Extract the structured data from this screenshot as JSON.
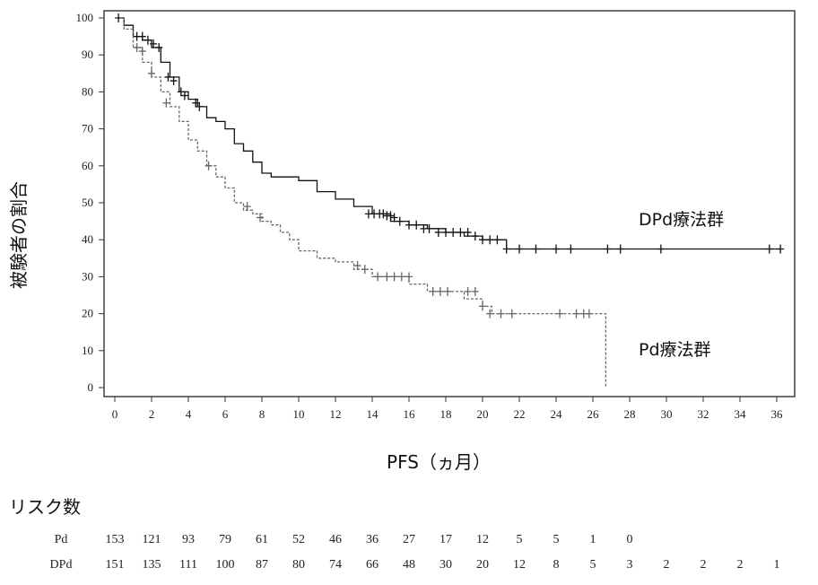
{
  "chart_data": {
    "type": "line",
    "xlabel": "PFS（ヵ月）",
    "ylabel": "被験者の割合",
    "xlim": [
      0,
      37
    ],
    "ylim": [
      0,
      100
    ],
    "x_ticks": [
      0,
      2,
      4,
      6,
      8,
      10,
      12,
      14,
      16,
      18,
      20,
      22,
      24,
      26,
      28,
      30,
      32,
      34,
      36
    ],
    "y_ticks": [
      0,
      10,
      20,
      30,
      40,
      50,
      60,
      70,
      80,
      90,
      100
    ],
    "series": [
      {
        "name": "DPd療法群",
        "color": "#111111",
        "line_style": "solid",
        "x": [
          0,
          0.5,
          1.0,
          1.5,
          2.0,
          2.5,
          3.0,
          3.5,
          4.0,
          4.5,
          5.0,
          5.5,
          6.0,
          6.5,
          7.0,
          7.5,
          8.0,
          8.5,
          9.0,
          10.0,
          11.0,
          12.0,
          13.0,
          14.0,
          15.0,
          16.0,
          17.0,
          18.0,
          19.0,
          20.0,
          21.0,
          21.3,
          36.2
        ],
        "y": [
          100,
          98,
          95,
          94,
          92,
          88,
          84,
          80,
          78,
          76,
          73,
          72,
          70,
          66,
          64,
          61,
          58,
          57,
          57,
          56,
          53,
          51,
          49,
          47,
          45,
          44,
          43,
          42,
          41,
          40,
          40,
          37.5,
          37.5
        ],
        "censor_x": [
          0.2,
          1.2,
          1.5,
          1.8,
          2.1,
          2.4,
          2.9,
          3.2,
          3.6,
          3.8,
          4.4,
          4.6,
          13.8,
          14.1,
          14.4,
          14.6,
          14.8,
          15.0,
          15.2,
          15.5,
          16.0,
          16.4,
          16.8,
          17.1,
          17.6,
          18.0,
          18.4,
          18.8,
          19.2,
          19.6,
          20.0,
          20.4,
          20.8,
          21.3,
          22.0,
          22.9,
          24.0,
          24.8,
          26.8,
          27.5,
          29.7,
          35.6,
          36.2
        ],
        "censor_y": [
          100,
          95,
          95,
          94,
          93,
          92,
          84,
          83,
          80,
          79,
          77,
          76,
          47,
          47,
          47,
          47,
          46.5,
          46.5,
          46,
          45,
          44,
          44,
          43,
          43,
          42,
          42,
          42,
          42,
          42,
          41,
          40,
          40,
          40,
          37.5,
          37.5,
          37.5,
          37.5,
          37.5,
          37.5,
          37.5,
          37.5,
          37.5,
          37.5
        ]
      },
      {
        "name": "Pd療法群",
        "color": "#666666",
        "line_style": "dashed",
        "x": [
          0,
          0.5,
          1.0,
          1.5,
          2.0,
          2.5,
          3.0,
          3.5,
          4.0,
          4.5,
          5.0,
          5.5,
          6.0,
          6.5,
          7.0,
          7.5,
          8.0,
          8.5,
          9.0,
          9.5,
          10.0,
          11.0,
          12.0,
          13.0,
          14.0,
          15.0,
          16.0,
          17.0,
          18.0,
          19.0,
          20.0,
          20.5,
          26.7,
          26.7
        ],
        "y": [
          100,
          97,
          92,
          88,
          84,
          80,
          76,
          72,
          67,
          64,
          60,
          57,
          54,
          50,
          48,
          47,
          45,
          44,
          42,
          40,
          37,
          35,
          34,
          32,
          30,
          30,
          28,
          26,
          26,
          24,
          22,
          20,
          20,
          0
        ],
        "censor_x": [
          1.2,
          1.5,
          2.0,
          2.8,
          5.1,
          7.2,
          7.9,
          13.2,
          13.6,
          14.3,
          14.8,
          15.2,
          15.6,
          16.0,
          17.3,
          17.7,
          18.1,
          19.2,
          19.6,
          20.0,
          20.4,
          21.0,
          21.6,
          24.2,
          25.1,
          25.5,
          25.8
        ],
        "censor_y": [
          92,
          91,
          85,
          77,
          60,
          49,
          46,
          33,
          32,
          30,
          30,
          30,
          30,
          30,
          26,
          26,
          26,
          26,
          26,
          22,
          20,
          20,
          20,
          20,
          20,
          20,
          20
        ]
      }
    ]
  },
  "risk_table": {
    "title": "リスク数",
    "rows": [
      {
        "label": "Pd",
        "values": [
          "153",
          "121",
          "93",
          "79",
          "61",
          "52",
          "46",
          "36",
          "27",
          "17",
          "12",
          "5",
          "5",
          "1",
          "0"
        ]
      },
      {
        "label": "DPd",
        "values": [
          "151",
          "135",
          "111",
          "100",
          "87",
          "80",
          "74",
          "66",
          "48",
          "30",
          "20",
          "12",
          "8",
          "5",
          "3",
          "2",
          "2",
          "2",
          "1"
        ]
      }
    ]
  }
}
